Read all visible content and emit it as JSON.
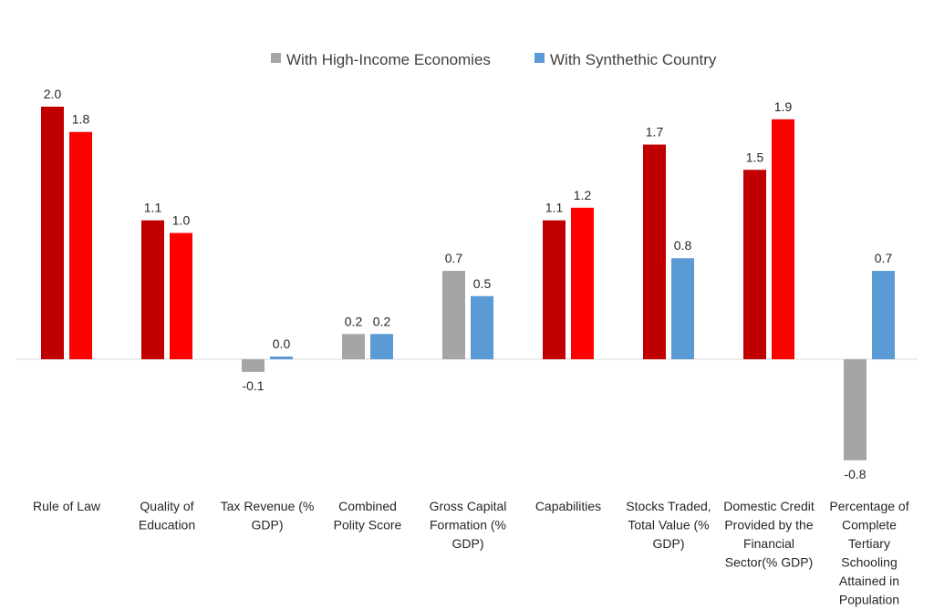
{
  "chart_data": {
    "type": "bar",
    "title": "",
    "xlabel": "",
    "ylabel": "",
    "ylim": [
      -0.8,
      2.0
    ],
    "grid": false,
    "legend_position": "top",
    "categories": [
      "Rule of Law",
      "Quality of Education",
      "Tax Revenue (% GDP)",
      "Combined Polity Score",
      "Gross Capital Formation (% GDP)",
      "Capabilities",
      "Stocks Traded, Total Value (% GDP)",
      "Domestic Credit Provided by the Financial Sector(% GDP)",
      "Percentage of Complete Tertiary Schooling Attained in Population"
    ],
    "category_lines": [
      [
        "Rule of Law"
      ],
      [
        "Quality of",
        "Education"
      ],
      [
        "Tax Revenue (%",
        "GDP)"
      ],
      [
        "Combined",
        "Polity Score"
      ],
      [
        "Gross Capital",
        "Formation (%",
        "GDP)"
      ],
      [
        "Capabilities"
      ],
      [
        "Stocks Traded,",
        "Total Value (%",
        "GDP)"
      ],
      [
        "Domestic Credit",
        "Provided by the",
        "Financial",
        "Sector(% GDP)"
      ],
      [
        "Percentage of",
        "Complete",
        "Tertiary",
        "Schooling",
        "Attained in",
        "Population"
      ]
    ],
    "series": [
      {
        "name": "With High-Income Economies",
        "color": "#a5a5a5",
        "values": [
          2.0,
          1.1,
          -0.1,
          0.2,
          0.7,
          1.1,
          1.7,
          1.5,
          -0.8
        ],
        "labels": [
          "2.0",
          "1.1",
          "-0.1",
          "0.2",
          "0.7",
          "1.1",
          "1.7",
          "1.5",
          "-0.8"
        ],
        "point_colors": [
          "#c00000",
          "#c00000",
          "#a5a5a5",
          "#a5a5a5",
          "#a5a5a5",
          "#c00000",
          "#c00000",
          "#c00000",
          "#a5a5a5"
        ]
      },
      {
        "name": "With Synthethic Country",
        "color": "#5b9bd5",
        "values": [
          1.8,
          1.0,
          0.0,
          0.2,
          0.5,
          1.2,
          0.8,
          1.9,
          0.7
        ],
        "labels": [
          "1.8",
          "1.0",
          "0.0",
          "0.2",
          "0.5",
          "1.2",
          "0.8",
          "1.9",
          "0.7"
        ],
        "point_colors": [
          "#ff0000",
          "#ff0000",
          "#5b9bd5",
          "#5b9bd5",
          "#5b9bd5",
          "#ff0000",
          "#5b9bd5",
          "#ff0000",
          "#5b9bd5"
        ]
      }
    ]
  }
}
